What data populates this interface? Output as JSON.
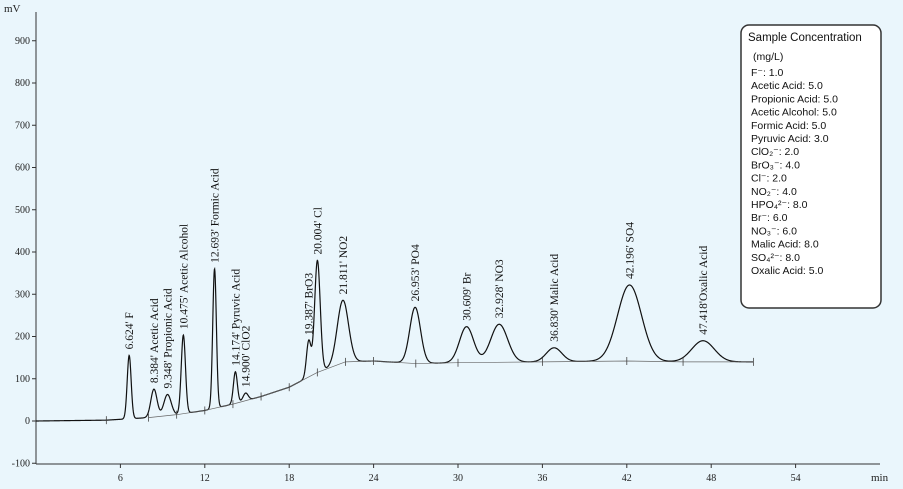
{
  "chart_data": {
    "type": "line",
    "title": "",
    "y_unit": "mV",
    "x_unit": "min",
    "xlim": [
      0,
      60
    ],
    "ylim": [
      -100,
      1000
    ],
    "x_ticks": [
      {
        "value": 6,
        "label": "6"
      },
      {
        "value": 12,
        "label": "12"
      },
      {
        "value": 18,
        "label": "18"
      },
      {
        "value": 24,
        "label": "24"
      },
      {
        "value": 30,
        "label": "30"
      },
      {
        "value": 36,
        "label": "36"
      },
      {
        "value": 42,
        "label": "42"
      },
      {
        "value": 48,
        "label": "48"
      },
      {
        "value": 54,
        "label": "54"
      }
    ],
    "y_ticks": [
      {
        "value": 900,
        "label": "900"
      },
      {
        "value": 800,
        "label": "800"
      },
      {
        "value": 700,
        "label": "700"
      },
      {
        "value": 600,
        "label": "600"
      },
      {
        "value": 500,
        "label": "500"
      },
      {
        "value": 400,
        "label": "400"
      },
      {
        "value": 300,
        "label": "300"
      },
      {
        "value": 200,
        "label": "200"
      },
      {
        "value": 100,
        "label": "100"
      },
      {
        "value": 0,
        "label": "0"
      },
      {
        "value": -100,
        "label": "-100"
      }
    ],
    "grid": false,
    "baseline": [
      [
        0,
        0
      ],
      [
        5,
        2
      ],
      [
        8,
        8
      ],
      [
        10,
        15
      ],
      [
        12,
        25
      ],
      [
        14,
        40
      ],
      [
        16,
        58
      ],
      [
        18,
        80
      ],
      [
        20,
        115
      ],
      [
        22,
        140
      ],
      [
        24,
        142
      ],
      [
        27,
        136
      ],
      [
        30,
        138
      ],
      [
        36,
        140
      ],
      [
        42,
        142
      ],
      [
        46,
        140
      ],
      [
        51,
        140
      ]
    ],
    "peaks": [
      {
        "label": "6.624' F",
        "rt": 6.624,
        "height": 150,
        "width": 0.14
      },
      {
        "label": "8.384' Acetic Acid",
        "rt": 8.384,
        "height": 66,
        "width": 0.22
      },
      {
        "label": "9.348' Propionic Acid",
        "rt": 9.348,
        "height": 50,
        "width": 0.26
      },
      {
        "label": "10.475' Acetic Alcohol",
        "rt": 10.475,
        "height": 186,
        "width": 0.15
      },
      {
        "label": "12.693' Formic Acid",
        "rt": 12.693,
        "height": 330,
        "width": 0.13
      },
      {
        "label": "14.174' Pyruvic Acid",
        "rt": 14.174,
        "height": 75,
        "width": 0.14
      },
      {
        "label": "14.900' ClO2",
        "rt": 14.9,
        "height": 18,
        "width": 0.18
      },
      {
        "label": "19.387' BrO3",
        "rt": 19.387,
        "height": 85,
        "width": 0.16
      },
      {
        "label": "20.004' Cl",
        "rt": 20.004,
        "height": 265,
        "width": 0.2
      },
      {
        "label": "21.811' NO2",
        "rt": 21.811,
        "height": 148,
        "width": 0.4
      },
      {
        "label": "26.953' PO4",
        "rt": 26.953,
        "height": 133,
        "width": 0.38
      },
      {
        "label": "30.609' Br",
        "rt": 30.609,
        "height": 85,
        "width": 0.5
      },
      {
        "label": "32.928' NO3",
        "rt": 32.928,
        "height": 90,
        "width": 0.6
      },
      {
        "label": "36.830' Malic Acid",
        "rt": 36.83,
        "height": 33,
        "width": 0.55
      },
      {
        "label": "42.196' SO4",
        "rt": 42.196,
        "height": 180,
        "width": 0.85
      },
      {
        "label": "47.418'Oxalic Acid",
        "rt": 47.418,
        "height": 50,
        "width": 0.8
      }
    ],
    "legend": {
      "placement": "top-right",
      "title": "Sample Concentration",
      "unit": "(mg/L)",
      "entries": [
        "F⁻: 1.0",
        "Acetic Acid: 5.0",
        "Propionic Acid: 5.0",
        "Acetic Alcohol: 5.0",
        "Formic Acid: 5.0",
        "Pyruvic Acid: 3.0",
        "ClO₂⁻: 2.0",
        "BrO₃⁻: 4.0",
        "Cl⁻: 2.0",
        "NO₂⁻: 4.0",
        "HPO₄²⁻: 8.0",
        "Br⁻: 6.0",
        "NO₃⁻: 6.0",
        "Malic Acid: 8.0",
        "SO₄²⁻: 8.0",
        "Oxalic Acid: 5.0"
      ]
    }
  }
}
